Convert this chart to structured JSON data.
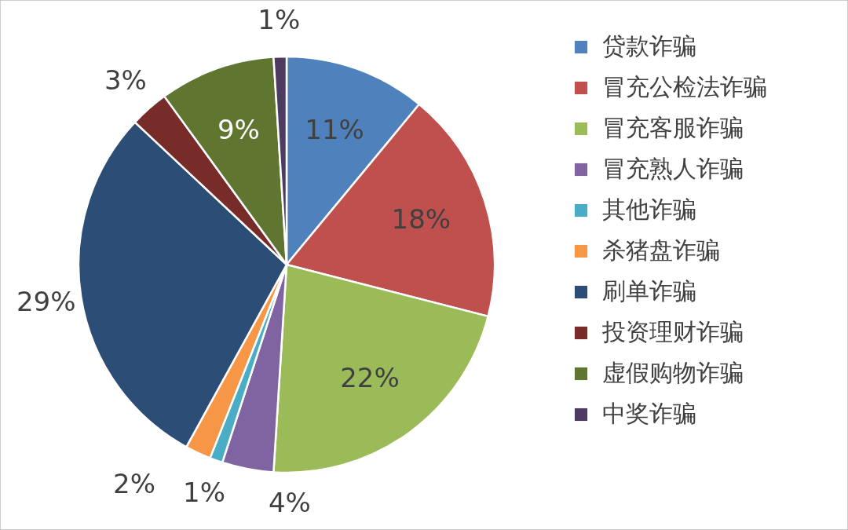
{
  "chart_data": {
    "type": "pie",
    "categories": [
      "贷款诈骗",
      "冒充公检法诈骗",
      "冒充客服诈骗",
      "冒充熟人诈骗",
      "其他诈骗",
      "杀猪盘诈骗",
      "刷单诈骗",
      "投资理财诈骗",
      "虚假购物诈骗",
      "中奖诈骗"
    ],
    "values": [
      11,
      18,
      22,
      4,
      1,
      2,
      29,
      3,
      9,
      1
    ],
    "value_labels": [
      "11%",
      "18%",
      "22%",
      "4%",
      "1%",
      "2%",
      "29%",
      "3%",
      "9%",
      "1%"
    ],
    "colors": [
      "#4f81bd",
      "#c0504d",
      "#9bbb59",
      "#8064a2",
      "#4bacc6",
      "#f79646",
      "#2c4d75",
      "#772c2a",
      "#5f7530",
      "#4d3b62"
    ],
    "legend": "right"
  }
}
